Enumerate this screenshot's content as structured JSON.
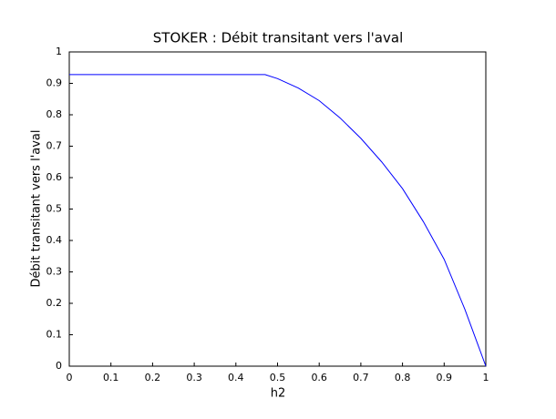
{
  "chart_data": {
    "type": "line",
    "title": "STOKER : Débit transitant vers l'aval",
    "x_label": "h2",
    "y_label": "Débit transitant vers l'aval",
    "x": [
      0,
      0.47,
      0.5,
      0.55,
      0.6,
      0.65,
      0.7,
      0.75,
      0.8,
      0.85,
      0.9,
      0.95,
      1.0
    ],
    "series": [
      {
        "color": "#0000ff",
        "values": [
          0.928,
          0.928,
          0.915,
          0.885,
          0.845,
          0.79,
          0.725,
          0.65,
          0.565,
          0.46,
          0.34,
          0.18,
          0
        ]
      }
    ],
    "xlim": [
      0,
      1
    ],
    "xticks": [
      0,
      0.1,
      0.2,
      0.3,
      0.4,
      0.5,
      0.6,
      0.7,
      0.8,
      0.9,
      1
    ],
    "ylim": [
      0,
      1
    ],
    "yticks": [
      0,
      0.1,
      0.2,
      0.3,
      0.4,
      0.5,
      0.6,
      0.7,
      0.8,
      0.9,
      1
    ],
    "grid": false
  }
}
